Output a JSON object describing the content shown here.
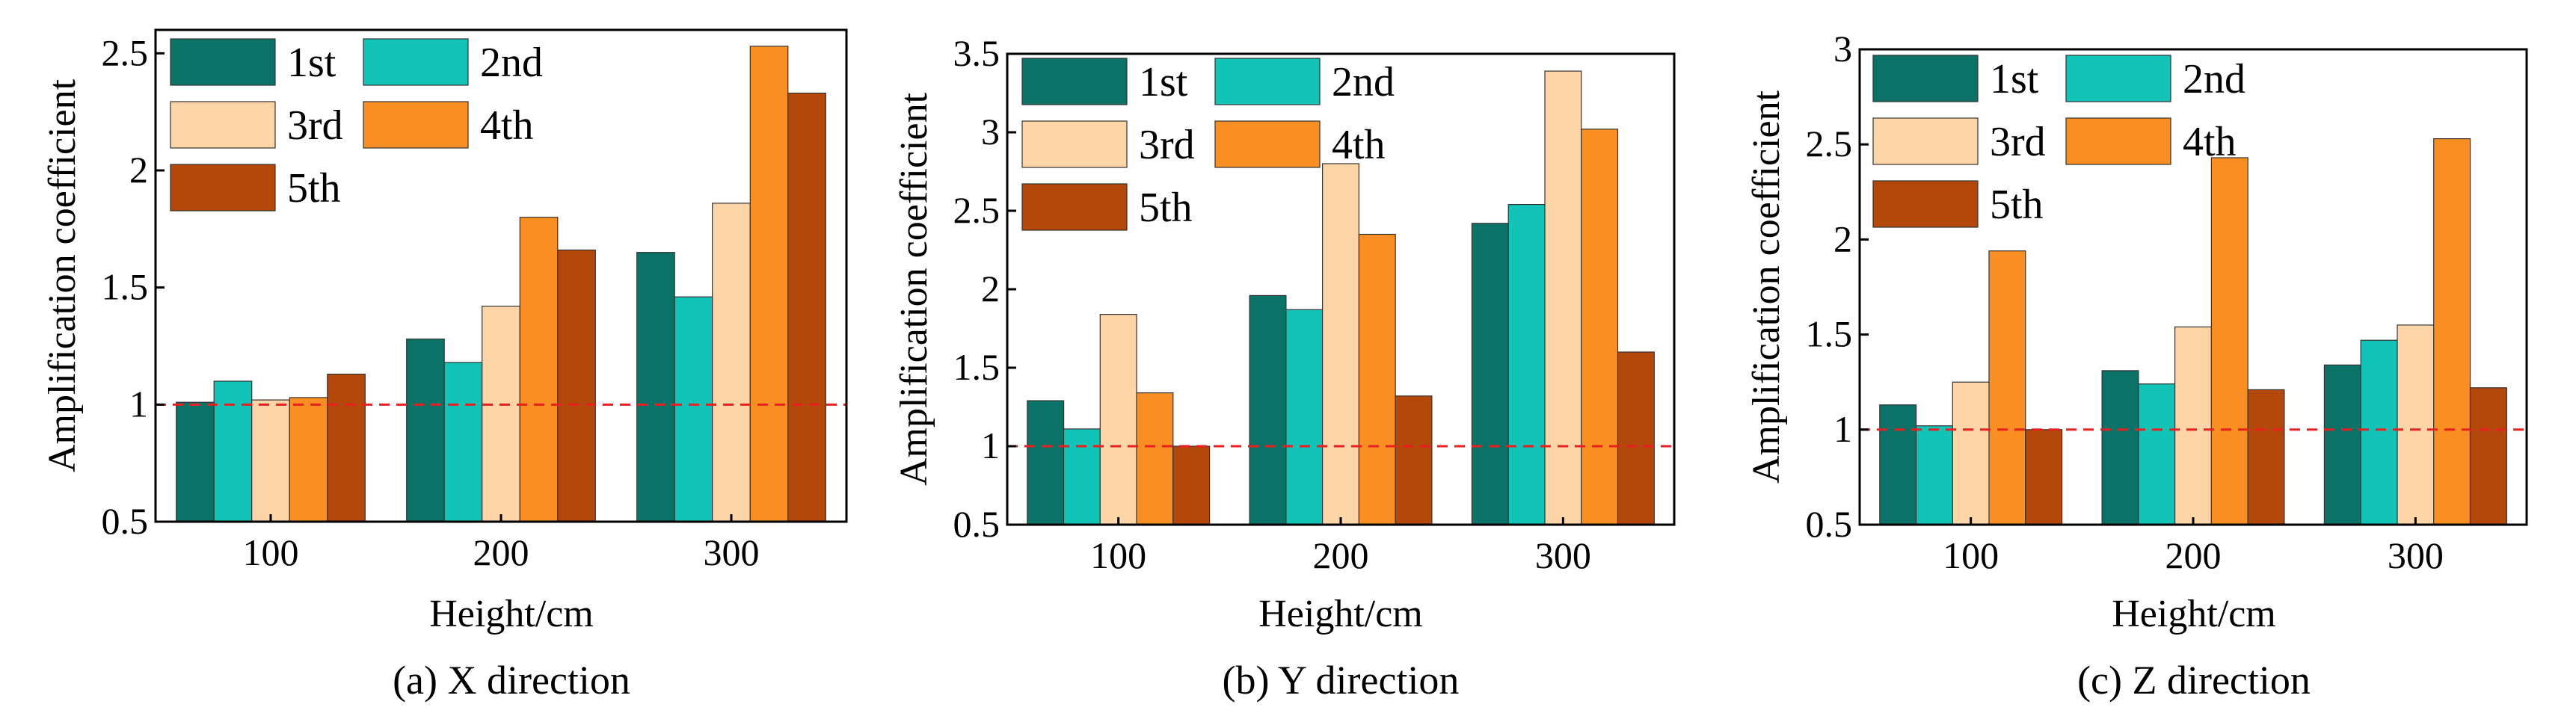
{
  "reference_line": {
    "value": 1,
    "color": "#e8201f"
  },
  "colors": {
    "1st": "#0b7267",
    "2nd": "#12c4b7",
    "3rd": "#fdd5a6",
    "4th": "#f98f22",
    "5th": "#b4470a"
  },
  "chart_data": [
    {
      "type": "bar",
      "caption": "(a) X direction",
      "xlabel": "Height/cm",
      "ylabel": "Amplification coefficient",
      "categories": [
        "100",
        "200",
        "300"
      ],
      "ylim": [
        0.5,
        2.6
      ],
      "yticks": [
        0.5,
        1,
        1.5,
        2,
        2.5
      ],
      "ytick_labels": [
        "0.5",
        "1",
        "1.5",
        "2",
        "2.5"
      ],
      "legend": [
        "1st",
        "2nd",
        "3rd",
        "4th",
        "5th"
      ],
      "series": [
        {
          "name": "1st",
          "values": [
            1.01,
            1.28,
            1.65
          ]
        },
        {
          "name": "2nd",
          "values": [
            1.1,
            1.18,
            1.46
          ]
        },
        {
          "name": "3rd",
          "values": [
            1.02,
            1.42,
            1.86
          ]
        },
        {
          "name": "4th",
          "values": [
            1.03,
            1.8,
            2.53
          ]
        },
        {
          "name": "5th",
          "values": [
            1.13,
            1.66,
            2.33
          ]
        }
      ]
    },
    {
      "type": "bar",
      "caption": "(b) Y direction",
      "xlabel": "Height/cm",
      "ylabel": "Amplification coefficient",
      "categories": [
        "100",
        "200",
        "300"
      ],
      "ylim": [
        0.5,
        3.5
      ],
      "yticks": [
        0.5,
        1,
        1.5,
        2,
        2.5,
        3,
        3.5
      ],
      "ytick_labels": [
        "0.5",
        "1",
        "1.5",
        "2",
        "2.5",
        "3",
        "3.5"
      ],
      "legend": [
        "1st",
        "2nd",
        "3rd",
        "4th",
        "5th"
      ],
      "series": [
        {
          "name": "1st",
          "values": [
            1.29,
            1.96,
            2.42
          ]
        },
        {
          "name": "2nd",
          "values": [
            1.11,
            1.87,
            2.54
          ]
        },
        {
          "name": "3rd",
          "values": [
            1.84,
            2.8,
            3.39
          ]
        },
        {
          "name": "4th",
          "values": [
            1.34,
            2.35,
            3.02
          ]
        },
        {
          "name": "5th",
          "values": [
            1.0,
            1.32,
            1.6
          ]
        }
      ]
    },
    {
      "type": "bar",
      "caption": "(c) Z direction",
      "xlabel": "Height/cm",
      "ylabel": "Amplification coefficient",
      "categories": [
        "100",
        "200",
        "300"
      ],
      "ylim": [
        0.5,
        3.0
      ],
      "yticks": [
        0.5,
        1,
        1.5,
        2,
        2.5,
        3
      ],
      "ytick_labels": [
        "0.5",
        "1",
        "1.5",
        "2",
        "2.5",
        "3"
      ],
      "legend": [
        "1st",
        "2nd",
        "3rd",
        "4th",
        "5th"
      ],
      "series": [
        {
          "name": "1st",
          "values": [
            1.13,
            1.31,
            1.34
          ]
        },
        {
          "name": "2nd",
          "values": [
            1.02,
            1.24,
            1.47
          ]
        },
        {
          "name": "3rd",
          "values": [
            1.25,
            1.54,
            1.55
          ]
        },
        {
          "name": "4th",
          "values": [
            1.94,
            2.43,
            2.53
          ]
        },
        {
          "name": "5th",
          "values": [
            1.0,
            1.21,
            1.22
          ]
        }
      ]
    }
  ]
}
